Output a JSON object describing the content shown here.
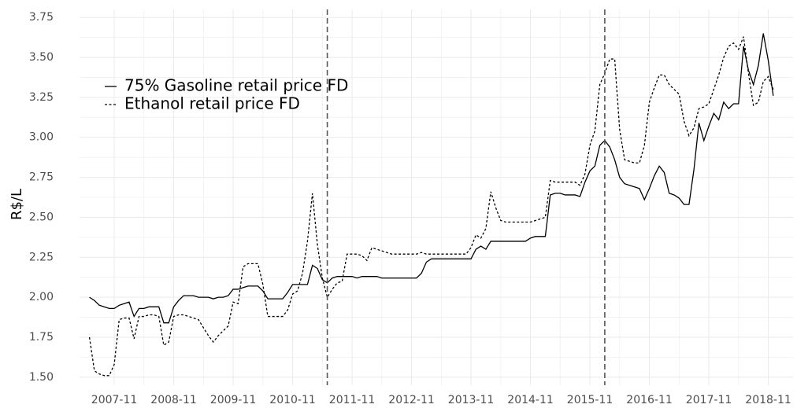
{
  "chart_data": {
    "type": "line",
    "ylabel": "R$/L",
    "x": [
      "2007-06",
      "2007-07",
      "2007-08",
      "2007-09",
      "2007-10",
      "2007-11",
      "2007-12",
      "2008-01",
      "2008-02",
      "2008-03",
      "2008-04",
      "2008-05",
      "2008-06",
      "2008-07",
      "2008-08",
      "2008-09",
      "2008-10",
      "2008-11",
      "2008-12",
      "2009-01",
      "2009-02",
      "2009-03",
      "2009-04",
      "2009-05",
      "2009-06",
      "2009-07",
      "2009-08",
      "2009-09",
      "2009-10",
      "2009-11",
      "2009-12",
      "2010-01",
      "2010-02",
      "2010-03",
      "2010-04",
      "2010-05",
      "2010-06",
      "2010-07",
      "2010-08",
      "2010-09",
      "2010-10",
      "2010-11",
      "2010-12",
      "2011-01",
      "2011-02",
      "2011-03",
      "2011-04",
      "2011-05",
      "2011-06",
      "2011-07",
      "2011-08",
      "2011-09",
      "2011-10",
      "2011-11",
      "2011-12",
      "2012-01",
      "2012-02",
      "2012-03",
      "2012-04",
      "2012-05",
      "2012-06",
      "2012-07",
      "2012-08",
      "2012-09",
      "2012-10",
      "2012-11",
      "2012-12",
      "2013-01",
      "2013-02",
      "2013-03",
      "2013-04",
      "2013-05",
      "2013-06",
      "2013-07",
      "2013-08",
      "2013-09",
      "2013-10",
      "2013-11",
      "2013-12",
      "2014-01",
      "2014-02",
      "2014-03",
      "2014-04",
      "2014-05",
      "2014-06",
      "2014-07",
      "2014-08",
      "2014-09",
      "2014-10",
      "2014-11",
      "2014-12",
      "2015-01",
      "2015-02",
      "2015-03",
      "2015-04",
      "2015-05",
      "2015-06",
      "2015-07",
      "2015-08",
      "2015-09",
      "2015-10",
      "2015-11",
      "2015-12",
      "2016-01",
      "2016-02",
      "2016-03",
      "2016-04",
      "2016-05",
      "2016-06",
      "2016-07",
      "2016-08",
      "2016-09",
      "2016-10",
      "2016-11",
      "2016-12",
      "2017-01",
      "2017-02",
      "2017-03",
      "2017-04",
      "2017-05",
      "2017-06",
      "2017-07",
      "2017-08",
      "2017-09",
      "2017-10",
      "2017-11",
      "2017-12",
      "2018-01",
      "2018-02",
      "2018-03",
      "2018-04",
      "2018-05",
      "2018-06",
      "2018-07",
      "2018-08",
      "2018-09",
      "2018-10",
      "2018-11",
      "2018-12"
    ],
    "series": [
      {
        "name": "75% Gasoline retail price FD",
        "color": "#000000",
        "line_style": "solid",
        "values": [
          2.0,
          1.98,
          1.95,
          1.94,
          1.93,
          1.93,
          1.95,
          1.96,
          1.97,
          1.88,
          1.93,
          1.93,
          1.94,
          1.94,
          1.94,
          1.84,
          1.84,
          1.94,
          1.98,
          2.01,
          2.01,
          2.01,
          2.0,
          2.0,
          2.0,
          1.99,
          2.0,
          2.0,
          2.01,
          2.05,
          2.05,
          2.06,
          2.07,
          2.07,
          2.07,
          2.04,
          1.99,
          1.99,
          1.99,
          1.99,
          2.03,
          2.08,
          2.08,
          2.08,
          2.08,
          2.2,
          2.18,
          2.11,
          2.09,
          2.12,
          2.13,
          2.13,
          2.13,
          2.13,
          2.12,
          2.13,
          2.13,
          2.13,
          2.13,
          2.12,
          2.12,
          2.12,
          2.12,
          2.12,
          2.12,
          2.12,
          2.12,
          2.15,
          2.22,
          2.24,
          2.24,
          2.24,
          2.24,
          2.24,
          2.24,
          2.24,
          2.24,
          2.24,
          2.3,
          2.32,
          2.3,
          2.35,
          2.35,
          2.35,
          2.35,
          2.35,
          2.35,
          2.35,
          2.35,
          2.37,
          2.38,
          2.38,
          2.38,
          2.64,
          2.65,
          2.65,
          2.64,
          2.64,
          2.64,
          2.63,
          2.72,
          2.79,
          2.82,
          2.95,
          2.98,
          2.94,
          2.86,
          2.75,
          2.71,
          2.7,
          2.69,
          2.68,
          2.61,
          2.68,
          2.76,
          2.82,
          2.78,
          2.65,
          2.64,
          2.62,
          2.58,
          2.58,
          2.8,
          3.09,
          2.98,
          3.07,
          3.15,
          3.11,
          3.22,
          3.18,
          3.21,
          3.21,
          3.57,
          3.42,
          3.33,
          3.45,
          3.65,
          3.48,
          3.26
        ]
      },
      {
        "name": "Ethanol retail price FD",
        "color": "#000000",
        "line_style": "dotted",
        "values": [
          1.75,
          1.54,
          1.52,
          1.51,
          1.51,
          1.58,
          1.86,
          1.87,
          1.87,
          1.74,
          1.88,
          1.88,
          1.89,
          1.89,
          1.88,
          1.7,
          1.72,
          1.88,
          1.89,
          1.89,
          1.88,
          1.87,
          1.86,
          1.81,
          1.76,
          1.72,
          1.76,
          1.79,
          1.82,
          1.97,
          1.96,
          2.19,
          2.21,
          2.21,
          2.21,
          2.08,
          1.88,
          1.88,
          1.88,
          1.88,
          1.92,
          2.02,
          2.04,
          2.15,
          2.35,
          2.65,
          2.33,
          2.12,
          2.0,
          2.05,
          2.09,
          2.1,
          2.27,
          2.27,
          2.27,
          2.26,
          2.23,
          2.31,
          2.3,
          2.29,
          2.28,
          2.27,
          2.27,
          2.27,
          2.27,
          2.27,
          2.27,
          2.28,
          2.27,
          2.27,
          2.27,
          2.27,
          2.27,
          2.27,
          2.27,
          2.27,
          2.27,
          2.31,
          2.39,
          2.37,
          2.43,
          2.66,
          2.56,
          2.48,
          2.47,
          2.47,
          2.47,
          2.47,
          2.47,
          2.47,
          2.48,
          2.49,
          2.5,
          2.73,
          2.72,
          2.72,
          2.72,
          2.72,
          2.72,
          2.7,
          2.77,
          2.95,
          3.04,
          3.33,
          3.4,
          3.49,
          3.49,
          3.05,
          2.86,
          2.85,
          2.84,
          2.84,
          2.95,
          3.22,
          3.31,
          3.39,
          3.39,
          3.33,
          3.3,
          3.27,
          3.1,
          3.01,
          3.06,
          3.18,
          3.19,
          3.21,
          3.3,
          3.39,
          3.5,
          3.57,
          3.59,
          3.55,
          3.63,
          3.4,
          3.2,
          3.22,
          3.35,
          3.38,
          3.3
        ]
      }
    ],
    "xlim": [
      "2007-04",
      "2019-04"
    ],
    "xticks": [
      "2007-11",
      "2008-11",
      "2009-11",
      "2010-11",
      "2011-11",
      "2012-11",
      "2013-11",
      "2014-11",
      "2015-11",
      "2016-11",
      "2017-11",
      "2018-11"
    ],
    "ylim": [
      1.45,
      3.8
    ],
    "yticks": [
      {
        "value": 1.5,
        "label": "1.50"
      },
      1.75,
      {
        "value": 2,
        "label": "2.00"
      },
      2.25,
      {
        "value": 2.5,
        "label": "2.50"
      },
      2.75,
      {
        "value": 3,
        "label": "3.00"
      },
      3.25,
      {
        "value": 3.5,
        "label": "3.50"
      },
      3.75
    ],
    "vlines": [
      "2011-06",
      "2016-02"
    ],
    "vline_color": "#555555",
    "grid": true,
    "legend": "top-left"
  }
}
